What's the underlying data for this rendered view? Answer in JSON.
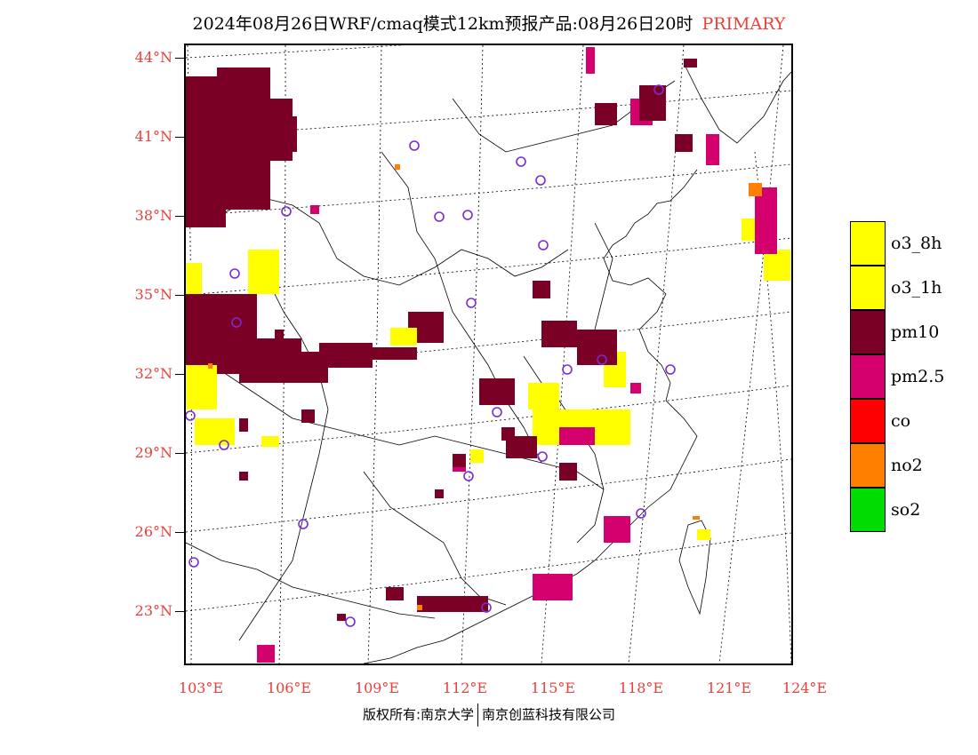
{
  "title": {
    "main": "2024年08月26日WRF/cmaq模式12km预报产品:08月26日20时",
    "tag": "PRIMARY"
  },
  "colors": {
    "label_red": "#e8413c",
    "o3_8h": "#ffff00",
    "o3_1h": "#ffff00",
    "pm10": "#7a0026",
    "pm2_5": "#d4006e",
    "co": "#ff0000",
    "no2": "#ff7f00",
    "so2": "#00dd00",
    "station_circle": "#7b2ad6"
  },
  "axes": {
    "lat_labels": [
      "44°N",
      "41°N",
      "38°N",
      "35°N",
      "32°N",
      "29°N",
      "26°N",
      "23°N"
    ],
    "lon_labels": [
      "103°E",
      "106°E",
      "109°E",
      "112°E",
      "115°E",
      "118°E",
      "121°E",
      "124°E"
    ]
  },
  "legend": [
    {
      "key": "o3_8h",
      "label": "o3_8h"
    },
    {
      "key": "o3_1h",
      "label": "o3_1h"
    },
    {
      "key": "pm10",
      "label": "pm10"
    },
    {
      "key": "pm2_5",
      "label": "pm2.5"
    },
    {
      "key": "co",
      "label": "co"
    },
    {
      "key": "no2",
      "label": "no2"
    },
    {
      "key": "so2",
      "label": "so2"
    }
  ],
  "copyright": {
    "left": "版权所有:南京大学",
    "right": "南京创蓝科技有限公司"
  }
}
